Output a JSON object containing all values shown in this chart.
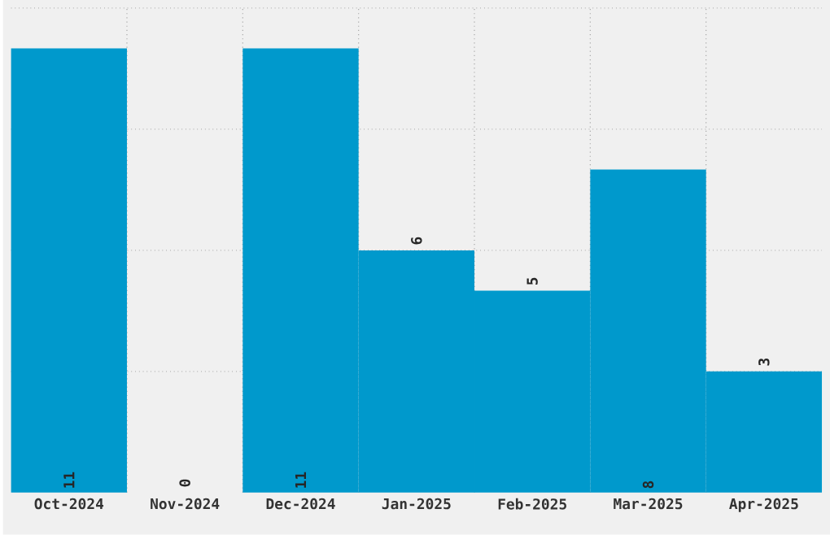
{
  "chart_data": {
    "type": "bar",
    "categories": [
      "Oct-2024",
      "Nov-2024",
      "Dec-2024",
      "Jan-2025",
      "Feb-2025",
      "Mar-2025",
      "Apr-2025"
    ],
    "values": [
      11,
      0,
      11,
      6,
      5,
      8,
      3
    ],
    "color": "#0099cc",
    "ylim": [
      0,
      12
    ],
    "yticks": [
      {
        "value": 3,
        "label": null
      },
      {
        "value": 6,
        "label": null
      },
      {
        "value": 9,
        "label": null
      },
      {
        "value": 12,
        "label": null
      }
    ],
    "tick_labels": "x",
    "grid": true,
    "data_labels": true
  }
}
